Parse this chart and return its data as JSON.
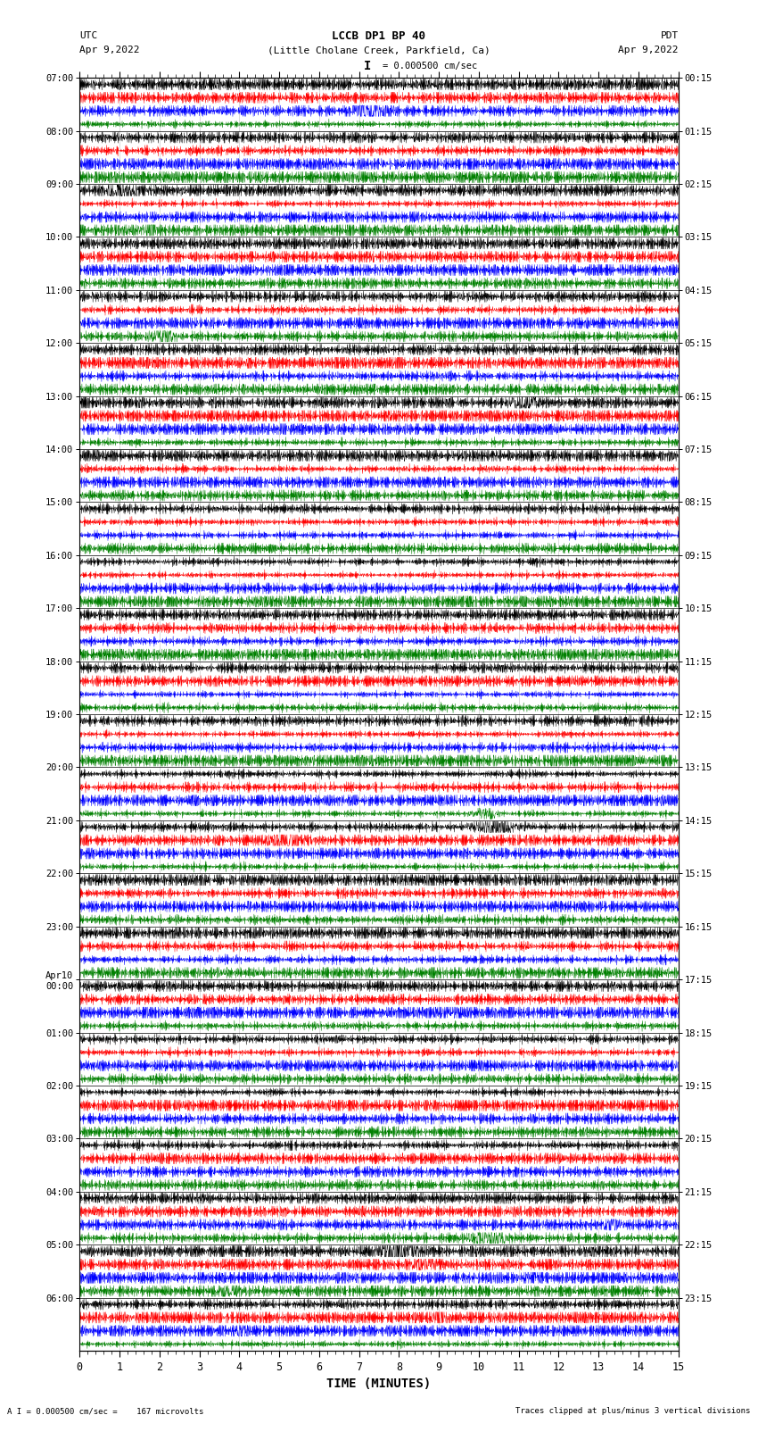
{
  "title_line1": "LCCB DP1 BP 40",
  "title_line2": "(Little Cholane Creek, Parkfield, Ca)",
  "left_header": "UTC",
  "left_date": "Apr 9,2022",
  "right_header": "PDT",
  "right_date": "Apr 9,2022",
  "scale_label": "I = 0.000500 cm/sec",
  "bottom_label": "TIME (MINUTES)",
  "footer_left": "A I = 0.000500 cm/sec =    167 microvolts",
  "footer_right": "Traces clipped at plus/minus 3 vertical divisions",
  "utc_labels": [
    "07:00",
    "08:00",
    "09:00",
    "10:00",
    "11:00",
    "12:00",
    "13:00",
    "14:00",
    "15:00",
    "16:00",
    "17:00",
    "18:00",
    "19:00",
    "20:00",
    "21:00",
    "22:00",
    "23:00",
    "Apr10\n00:00",
    "01:00",
    "02:00",
    "03:00",
    "04:00",
    "05:00",
    "06:00"
  ],
  "pdt_labels": [
    "00:15",
    "01:15",
    "02:15",
    "03:15",
    "04:15",
    "05:15",
    "06:15",
    "07:15",
    "08:15",
    "09:15",
    "10:15",
    "11:15",
    "12:15",
    "13:15",
    "14:15",
    "15:15",
    "16:15",
    "17:15",
    "18:15",
    "19:15",
    "20:15",
    "21:15",
    "22:15",
    "23:15"
  ],
  "trace_colors": [
    "black",
    "red",
    "blue",
    "green"
  ],
  "num_hours": 24,
  "traces_per_hour": 4,
  "x_min": 0,
  "x_max": 15,
  "x_ticks": [
    0,
    1,
    2,
    3,
    4,
    5,
    6,
    7,
    8,
    9,
    10,
    11,
    12,
    13,
    14,
    15
  ],
  "bg_color": "white",
  "fig_width": 8.5,
  "fig_height": 16.13
}
